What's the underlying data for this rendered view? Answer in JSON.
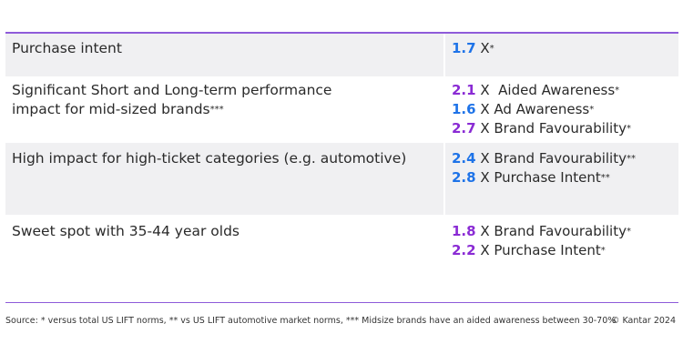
{
  "colors": {
    "blue": "#1e73e8",
    "purple": "#8a2bd4",
    "rule": "#8e5bd9",
    "shade": "#f0f0f2"
  },
  "rows": [
    {
      "label_line1": "Purchase intent",
      "label_line2": "",
      "label_mark": "",
      "metrics": [
        {
          "num": "1.7",
          "color": "blue",
          "text": " X",
          "mark": "*"
        }
      ]
    },
    {
      "label_line1": "Significant Short and Long-term performance",
      "label_line2": "impact for mid-sized brands",
      "label_mark": "***",
      "metrics": [
        {
          "num": "2.1",
          "color": "purple",
          "text": " X  Aided Awareness",
          "mark": "*"
        },
        {
          "num": "1.6",
          "color": "blue",
          "text": " X Ad Awareness",
          "mark": "*"
        },
        {
          "num": "2.7",
          "color": "purple",
          "text": " X Brand Favourability",
          "mark": "*"
        }
      ]
    },
    {
      "label_line1": "High impact for high-ticket categories (e.g. automotive)",
      "label_line2": "",
      "label_mark": "",
      "metrics": [
        {
          "num": "2.4",
          "color": "blue",
          "text": " X Brand Favourability",
          "mark": "**"
        },
        {
          "num": "2.8",
          "color": "blue",
          "text": " X Purchase Intent",
          "mark": "**"
        }
      ]
    },
    {
      "label_line1": "Sweet spot with 35-44 year olds",
      "label_line2": "",
      "label_mark": "",
      "metrics": [
        {
          "num": "1.8",
          "color": "purple",
          "text": " X Brand Favourability",
          "mark": "*"
        },
        {
          "num": "2.2",
          "color": "purple",
          "text": " X Purchase Intent",
          "mark": "*"
        }
      ]
    }
  ],
  "footer": {
    "source": "Source: * versus total US LIFT norms, ** vs US LIFT automotive market norms, *** Midsize brands have an aided awareness between 30-70%",
    "copyright": "© Kantar 2024"
  }
}
